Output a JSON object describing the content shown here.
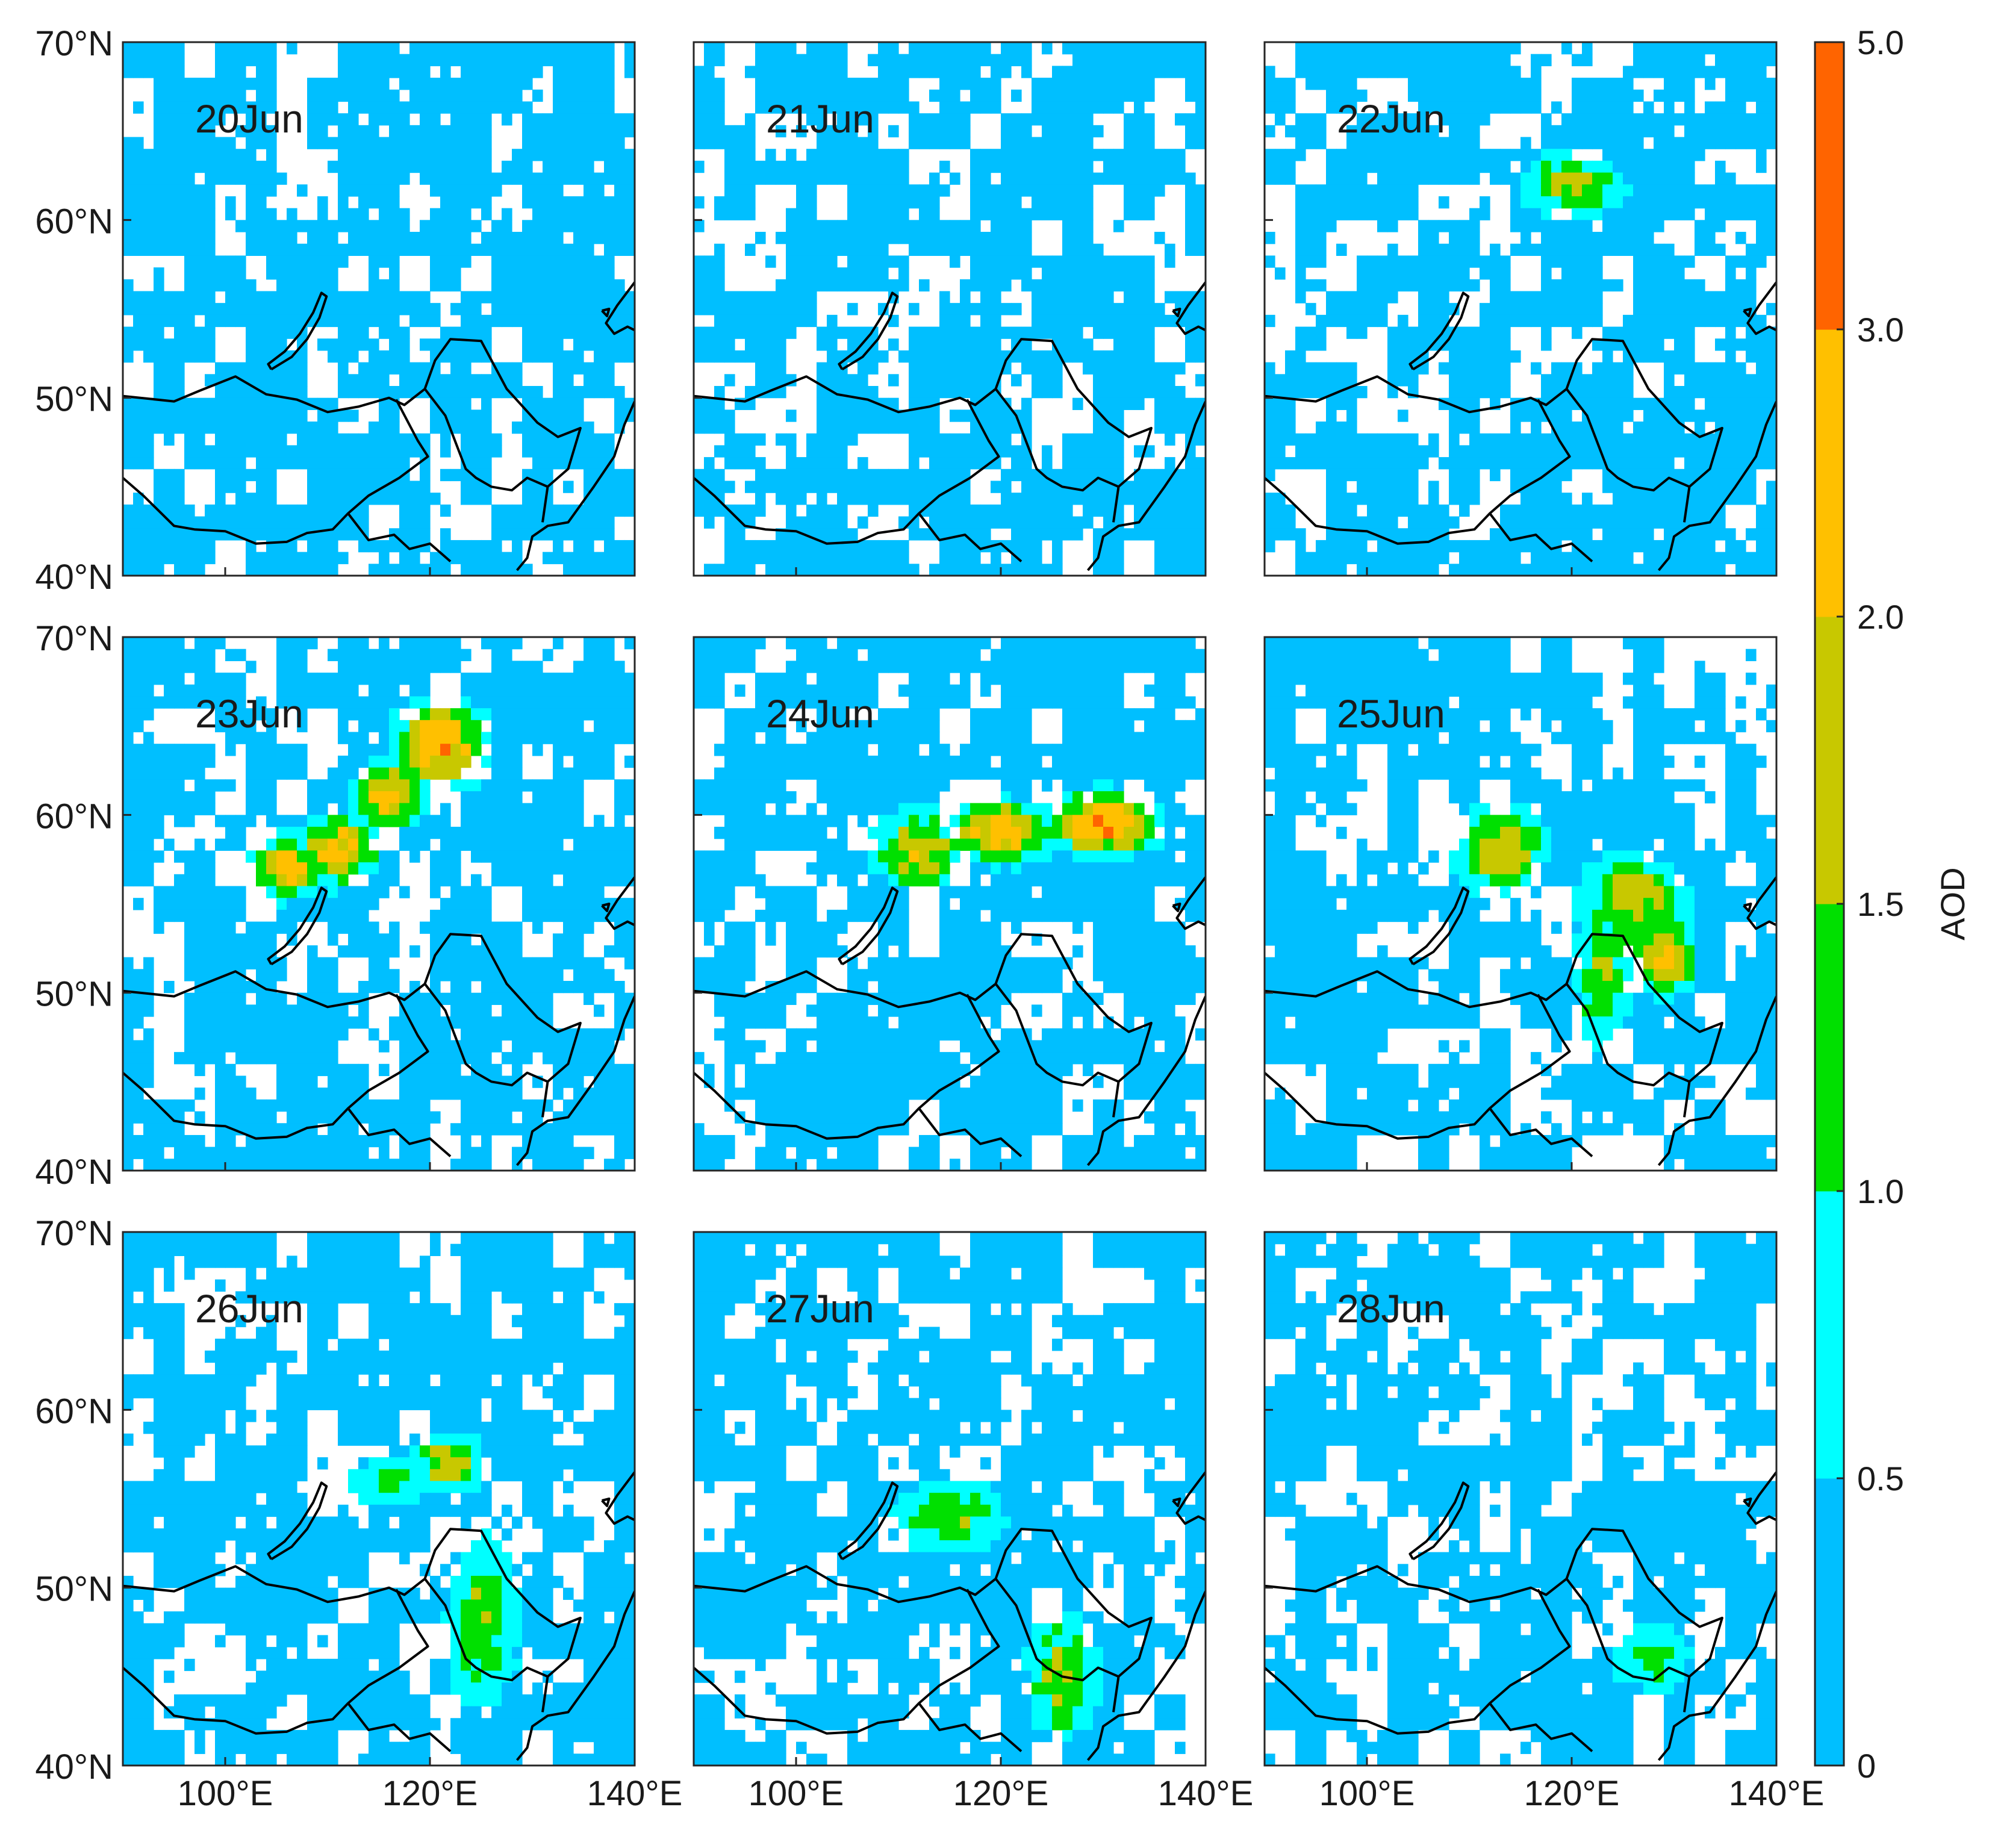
{
  "figure": {
    "panels": [
      {
        "date_label": "20Jun",
        "plumes": []
      },
      {
        "date_label": "21Jun",
        "plumes": []
      },
      {
        "date_label": "22Jun",
        "plumes": [
          {
            "lon": 120,
            "lat": 62,
            "sigma_lon": 3.5,
            "sigma_lat": 1.3,
            "peak": 1.7
          }
        ]
      },
      {
        "date_label": "23Jun",
        "plumes": [
          {
            "lon": 106,
            "lat": 57,
            "sigma_lon": 2.5,
            "sigma_lat": 1.2,
            "peak": 2.4
          },
          {
            "lon": 111,
            "lat": 58,
            "sigma_lon": 2.5,
            "sigma_lat": 1.3,
            "peak": 2.6
          },
          {
            "lon": 116,
            "lat": 61,
            "sigma_lon": 2.5,
            "sigma_lat": 1.3,
            "peak": 2.3
          },
          {
            "lon": 121,
            "lat": 64,
            "sigma_lon": 3.0,
            "sigma_lat": 1.6,
            "peak": 2.8
          }
        ]
      },
      {
        "date_label": "24Jun",
        "plumes": [
          {
            "lon": 112,
            "lat": 58,
            "sigma_lon": 3.0,
            "sigma_lat": 1.5,
            "peak": 2.0
          },
          {
            "lon": 120,
            "lat": 59,
            "sigma_lon": 3.5,
            "sigma_lat": 1.2,
            "peak": 2.5
          },
          {
            "lon": 130,
            "lat": 59.5,
            "sigma_lon": 3.5,
            "sigma_lat": 1.2,
            "peak": 3.0
          }
        ]
      },
      {
        "date_label": "25Jun",
        "plumes": [
          {
            "lon": 113,
            "lat": 58,
            "sigma_lon": 3.0,
            "sigma_lat": 1.8,
            "peak": 2.1
          },
          {
            "lon": 126,
            "lat": 55,
            "sigma_lon": 3.5,
            "sigma_lat": 2.0,
            "peak": 1.9
          },
          {
            "lon": 129,
            "lat": 52,
            "sigma_lon": 2.0,
            "sigma_lat": 1.5,
            "peak": 2.4
          },
          {
            "lon": 123,
            "lat": 51,
            "sigma_lon": 2.0,
            "sigma_lat": 3.0,
            "peak": 1.5
          }
        ]
      },
      {
        "date_label": "26Jun",
        "plumes": [
          {
            "lon": 122,
            "lat": 57,
            "sigma_lon": 2.5,
            "sigma_lat": 1.2,
            "peak": 1.9
          },
          {
            "lon": 125,
            "lat": 48,
            "sigma_lon": 2.5,
            "sigma_lat": 3.5,
            "peak": 1.5
          },
          {
            "lon": 116,
            "lat": 56,
            "sigma_lon": 3.0,
            "sigma_lat": 1.2,
            "peak": 1.2
          }
        ]
      },
      {
        "date_label": "27Jun",
        "plumes": [
          {
            "lon": 115,
            "lat": 54,
            "sigma_lon": 4.0,
            "sigma_lat": 1.5,
            "peak": 1.5
          },
          {
            "lon": 126,
            "lat": 45,
            "sigma_lon": 2.5,
            "sigma_lat": 2.5,
            "peak": 1.7
          }
        ]
      },
      {
        "date_label": "28Jun",
        "plumes": [
          {
            "lon": 128,
            "lat": 46,
            "sigma_lon": 3.0,
            "sigma_lat": 1.5,
            "peak": 1.2
          }
        ]
      }
    ],
    "lat_ticks": [
      "40°N",
      "50°N",
      "60°N",
      "70°N"
    ],
    "lon_ticks": [
      "100°E",
      "120°E",
      "140°E"
    ],
    "colorbar": {
      "label": "AOD",
      "ticks": [
        "0",
        "0.5",
        "1.0",
        "1.5",
        "2.0",
        "3.0",
        "5.0"
      ],
      "bins": [
        {
          "min": 0.0,
          "max": 0.5,
          "color": "#00bfff"
        },
        {
          "min": 0.5,
          "max": 1.0,
          "color": "#00ffff"
        },
        {
          "min": 1.0,
          "max": 1.5,
          "color": "#00e000"
        },
        {
          "min": 1.5,
          "max": 2.0,
          "color": "#c8c800"
        },
        {
          "min": 2.0,
          "max": 3.0,
          "color": "#ffc000"
        },
        {
          "min": 3.0,
          "max": 5.0,
          "color": "#ff6400"
        }
      ]
    },
    "missing_color": "#ffffff"
  }
}
